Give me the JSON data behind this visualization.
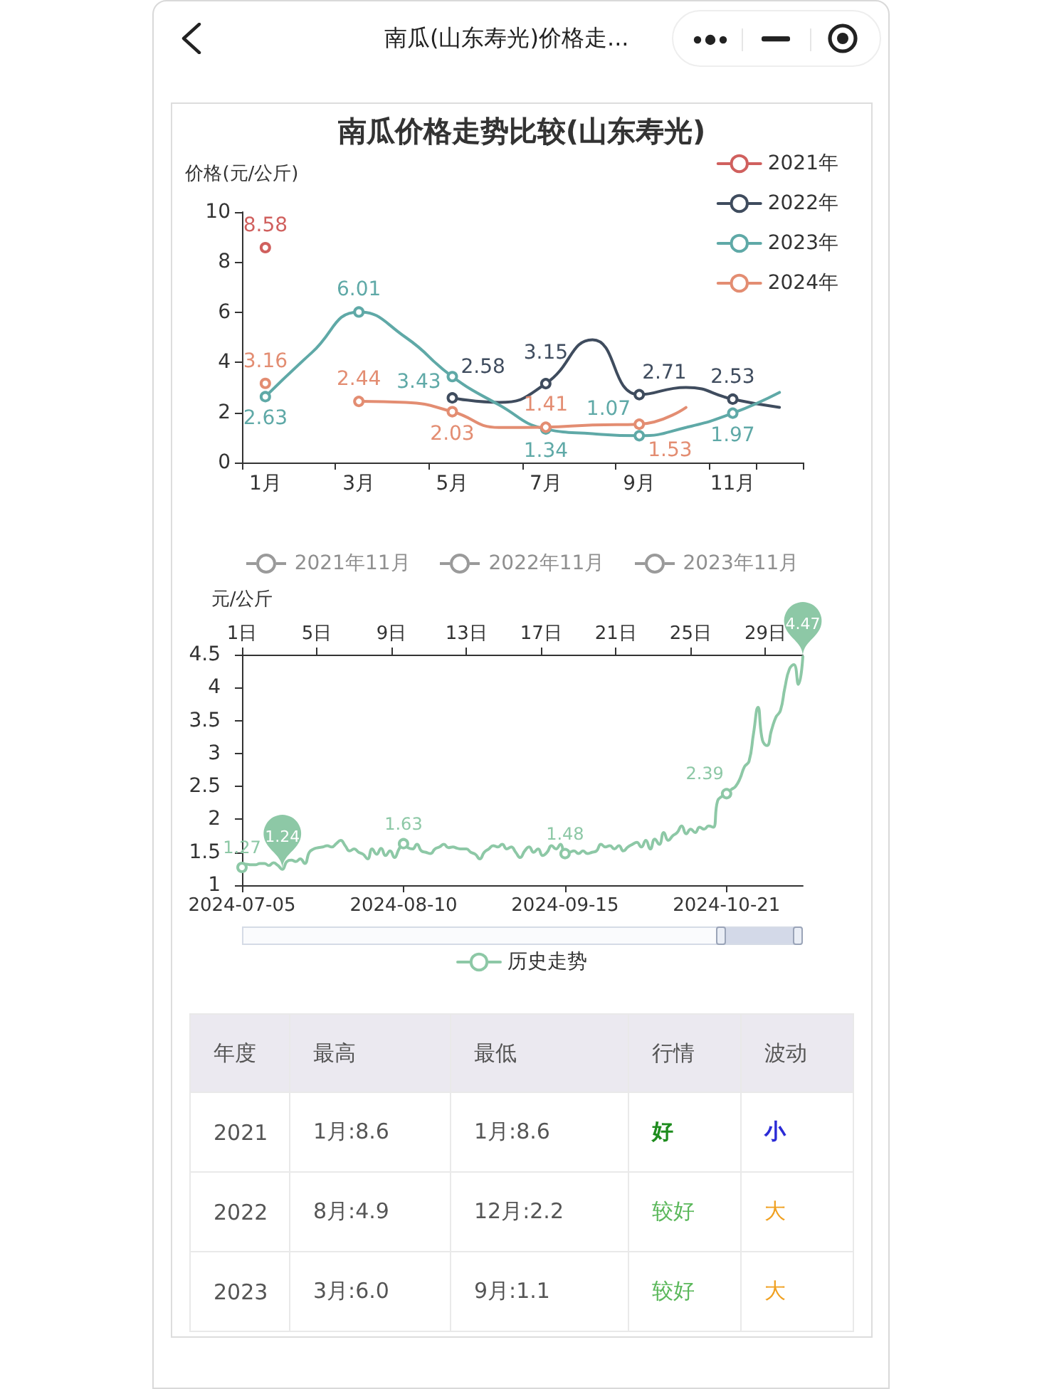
{
  "chart_data": [
    {
      "type": "line",
      "title": "南瓜价格走势比较(山东寿光)",
      "ylabel": "价格(元/公斤)",
      "annotations": [
        "南瓜(山东寿光)价格走..."
      ],
      "categories": [
        "1月",
        null,
        "3月",
        null,
        "5月",
        null,
        "7月",
        null,
        "9月",
        null,
        "11月",
        null
      ],
      "ylim": [
        0,
        10
      ],
      "yticks": [
        0,
        2,
        4,
        6,
        8,
        10
      ],
      "legend": "top right",
      "marker": "circle",
      "series": [
        {
          "name": "2021年",
          "color": "#d0605e",
          "values": [
            8.58,
            null,
            null,
            null,
            null,
            null,
            null,
            null,
            null,
            null,
            null,
            null
          ],
          "value_labels": [
            "8.58",
            null,
            null,
            null,
            null,
            null,
            null,
            null,
            null,
            null,
            null,
            null
          ]
        },
        {
          "name": "2022年",
          "color": "#3f4c5e",
          "values": [
            null,
            null,
            null,
            null,
            2.58,
            2.4,
            3.15,
            4.9,
            2.71,
            3.0,
            2.53,
            2.2
          ],
          "value_labels": [
            null,
            null,
            null,
            null,
            "2.58",
            null,
            "3.15",
            null,
            "2.71",
            null,
            "2.53",
            null
          ]
        },
        {
          "name": "2023年",
          "color": "#5fa9a7",
          "values": [
            2.63,
            4.4,
            6.01,
            5.0,
            3.43,
            2.3,
            1.34,
            1.15,
            1.07,
            1.4,
            1.97,
            2.8
          ],
          "value_labels": [
            "2.63",
            null,
            "6.01",
            null,
            "3.43",
            null,
            "1.34",
            null,
            "1.07",
            null,
            "1.97",
            null
          ]
        },
        {
          "name": "2024年",
          "color": "#e38d72",
          "values": [
            3.16,
            null,
            2.44,
            2.4,
            2.03,
            1.4,
            1.41,
            1.5,
            1.53,
            2.2,
            null,
            null
          ],
          "value_labels": [
            "3.16",
            null,
            "2.44",
            null,
            "2.03",
            null,
            "1.41",
            null,
            "1.53",
            null,
            null,
            null
          ]
        }
      ]
    },
    {
      "type": "line",
      "ylabel": "元/公斤",
      "legend": "bottom",
      "ylim": [
        1,
        4.5
      ],
      "yticks": [
        1,
        1.5,
        2,
        2.5,
        3,
        3.5,
        4,
        4.5
      ],
      "xlim": [
        "2024-07-05",
        "2024-11-07"
      ],
      "xticks": [
        "2024-07-05",
        "2024-08-10",
        "2024-09-15",
        "2024-10-21"
      ],
      "x2lim": [
        1,
        31
      ],
      "x2ticks": [
        {
          "value": 1,
          "label": "1日"
        },
        {
          "value": 5,
          "label": "5日"
        },
        {
          "value": 9,
          "label": "9日"
        },
        {
          "value": 13,
          "label": "13日"
        },
        {
          "value": 17,
          "label": "17日"
        },
        {
          "value": 21,
          "label": "21日"
        },
        {
          "value": 25,
          "label": "25日"
        },
        {
          "value": 29,
          "label": "29日"
        }
      ],
      "annotations": [
        {
          "text": "4.47",
          "x": "2024-11-07",
          "y": 4.47
        },
        {
          "text": "1.24",
          "x": "2024-07-14",
          "y": 1.24
        },
        "2021年11月",
        "2022年11月",
        "2023年11月"
      ],
      "x": [
        "2024-07-05",
        "2024-07-06",
        "2024-07-07",
        "2024-07-08",
        "2024-07-09",
        "2024-07-10",
        "2024-07-11",
        "2024-07-12",
        "2024-07-13",
        "2024-07-14",
        "2024-07-15",
        "2024-07-16",
        "2024-07-17",
        "2024-07-18",
        "2024-07-19",
        "2024-07-20",
        "2024-07-21",
        "2024-07-22",
        "2024-07-23",
        "2024-07-24",
        "2024-07-25",
        "2024-07-26",
        "2024-07-27",
        "2024-07-28",
        "2024-07-29",
        "2024-07-30",
        "2024-07-31",
        "2024-08-01",
        "2024-08-02",
        "2024-08-03",
        "2024-08-04",
        "2024-08-05",
        "2024-08-06",
        "2024-08-07",
        "2024-08-08",
        "2024-08-09",
        "2024-08-10",
        "2024-08-11",
        "2024-08-12",
        "2024-08-13",
        "2024-08-14",
        "2024-08-15",
        "2024-08-16",
        "2024-08-17",
        "2024-08-18",
        "2024-08-19",
        "2024-08-20",
        "2024-08-21",
        "2024-08-22",
        "2024-08-23",
        "2024-08-24",
        "2024-08-25",
        "2024-08-26",
        "2024-08-27",
        "2024-08-28",
        "2024-08-29",
        "2024-08-30",
        "2024-08-31",
        "2024-09-01",
        "2024-09-02",
        "2024-09-03",
        "2024-09-04",
        "2024-09-05",
        "2024-09-06",
        "2024-09-07",
        "2024-09-08",
        "2024-09-09",
        "2024-09-10",
        "2024-09-11",
        "2024-09-12",
        "2024-09-13",
        "2024-09-14",
        "2024-09-15",
        "2024-09-16",
        "2024-09-17",
        "2024-09-18",
        "2024-09-19",
        "2024-09-20",
        "2024-09-21",
        "2024-09-22",
        "2024-09-23",
        "2024-09-24",
        "2024-09-25",
        "2024-09-26",
        "2024-09-27",
        "2024-09-28",
        "2024-09-29",
        "2024-09-30",
        "2024-10-01",
        "2024-10-02",
        "2024-10-03",
        "2024-10-04",
        "2024-10-05",
        "2024-10-06",
        "2024-10-07",
        "2024-10-08",
        "2024-10-09",
        "2024-10-10",
        "2024-10-11",
        "2024-10-12",
        "2024-10-13",
        "2024-10-14",
        "2024-10-15",
        "2024-10-16",
        "2024-10-17",
        "2024-10-18",
        "2024-10-19",
        "2024-10-20",
        "2024-10-21",
        "2024-10-22",
        "2024-10-23",
        "2024-10-24",
        "2024-10-25",
        "2024-10-26",
        "2024-10-27",
        "2024-10-28",
        "2024-10-29",
        "2024-10-30",
        "2024-10-31",
        "2024-11-01",
        "2024-11-02",
        "2024-11-03",
        "2024-11-04",
        "2024-11-05",
        "2024-11-06",
        "2024-11-07"
      ],
      "series": [
        {
          "name": "历史走势",
          "color": "#8dc8a6",
          "values": [
            1.27,
            1.32,
            1.31,
            1.31,
            1.33,
            1.33,
            1.3,
            1.34,
            1.3,
            1.24,
            1.36,
            1.38,
            1.36,
            1.4,
            1.33,
            1.5,
            1.55,
            1.57,
            1.58,
            1.6,
            1.58,
            1.63,
            1.68,
            1.6,
            1.52,
            1.55,
            1.5,
            1.47,
            1.4,
            1.55,
            1.47,
            1.56,
            1.45,
            1.52,
            1.42,
            1.55,
            1.63,
            1.57,
            1.55,
            1.62,
            1.52,
            1.5,
            1.48,
            1.55,
            1.58,
            1.62,
            1.57,
            1.58,
            1.56,
            1.55,
            1.55,
            1.5,
            1.47,
            1.4,
            1.5,
            1.55,
            1.6,
            1.58,
            1.62,
            1.55,
            1.58,
            1.5,
            1.42,
            1.52,
            1.58,
            1.5,
            1.55,
            1.45,
            1.5,
            1.6,
            1.55,
            1.62,
            1.48,
            1.5,
            1.52,
            1.48,
            1.52,
            1.48,
            1.5,
            1.52,
            1.62,
            1.58,
            1.6,
            1.55,
            1.6,
            1.52,
            1.58,
            1.62,
            1.65,
            1.58,
            1.68,
            1.55,
            1.7,
            1.62,
            1.8,
            1.68,
            1.75,
            1.8,
            1.9,
            1.78,
            1.85,
            1.8,
            1.88,
            1.85,
            1.9,
            1.88,
            2.28,
            2.35,
            2.39,
            2.45,
            2.5,
            2.62,
            2.8,
            2.88,
            3.3,
            3.7,
            3.2,
            3.12,
            3.35,
            3.55,
            3.65,
            4.0,
            4.28,
            4.35,
            4.05,
            4.47
          ],
          "value_labels": [
            "1.27",
            null,
            null,
            null,
            null,
            null,
            null,
            null,
            null,
            null,
            null,
            null,
            null,
            null,
            null,
            null,
            null,
            null,
            null,
            null,
            null,
            null,
            null,
            null,
            null,
            null,
            null,
            null,
            null,
            null,
            null,
            null,
            null,
            null,
            null,
            null,
            "1.63",
            null,
            null,
            null,
            null,
            null,
            null,
            null,
            null,
            null,
            null,
            null,
            null,
            null,
            null,
            null,
            null,
            null,
            null,
            null,
            null,
            null,
            null,
            null,
            null,
            null,
            null,
            null,
            null,
            null,
            null,
            null,
            null,
            null,
            null,
            null,
            "1.48",
            null,
            null,
            null,
            null,
            null,
            null,
            null,
            null,
            null,
            null,
            null,
            null,
            null,
            null,
            null,
            null,
            null,
            null,
            null,
            null,
            null,
            null,
            null,
            null,
            null,
            null,
            null,
            null,
            null,
            null,
            null,
            null,
            null,
            null,
            null,
            "2.39",
            null,
            null,
            null,
            null,
            null,
            null,
            null,
            null,
            null,
            null,
            null,
            null,
            null,
            null,
            null,
            null,
            null
          ]
        }
      ]
    },
    {
      "type": "other",
      "categories": [
        "年度",
        "最高",
        "最低",
        "行情",
        "波动"
      ],
      "cell_labels": [
        [
          "2021",
          "1月:8.6",
          "1月:8.6",
          "好",
          "小"
        ],
        [
          "2022",
          "8月:4.9",
          "12月:2.2",
          "较好",
          "大"
        ],
        [
          "2023",
          "3月:6.0",
          "9月:1.1",
          "较好",
          "大"
        ]
      ],
      "colors": [
        "#ebe9f0",
        "#ebe9f0",
        "#ebe9f0",
        "#ebe9f0",
        "#ebe9f0",
        "#ffffff",
        "#ffffff",
        "#ffffff",
        "#ffffff",
        "#ffffff",
        "#ffffff",
        "#ffffff",
        "#ffffff",
        "#ffffff",
        "#ffffff",
        "#ffffff",
        "#ffffff",
        "#ffffff",
        "#ffffff",
        "#ffffff"
      ]
    }
  ]
}
